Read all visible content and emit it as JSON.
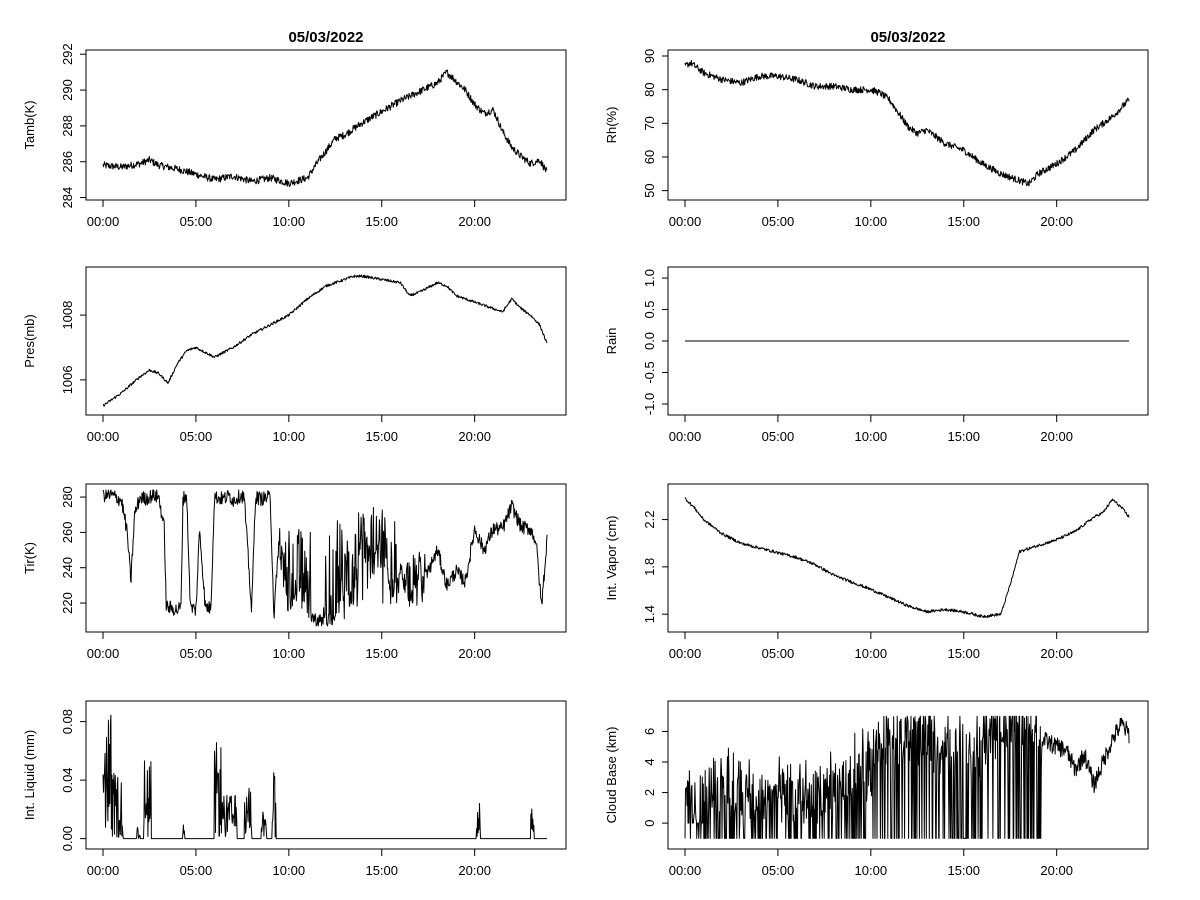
{
  "colors": {
    "line": "#000000",
    "background": "#ffffff"
  },
  "x_tick_labels": [
    "00:00",
    "05:00",
    "10:00",
    "15:00",
    "20:00"
  ],
  "chart_data": [
    {
      "type": "line",
      "panel": "Tamb",
      "title": "05/03/2022",
      "ylabel": "Tamb(K)",
      "xlim": [
        0,
        24
      ],
      "ylim": [
        284.2,
        291.9
      ],
      "yticks": [
        284,
        286,
        288,
        290,
        292
      ],
      "ytick_labels": [
        "284",
        "286",
        "288",
        "290",
        "292"
      ],
      "x": [
        0,
        1,
        2,
        2.5,
        3,
        4,
        5,
        6,
        7,
        8,
        9,
        10,
        11,
        11.5,
        12,
        12.5,
        13,
        14,
        15,
        16,
        17,
        18,
        18.5,
        19,
        19.5,
        20,
        20.5,
        21,
        21.5,
        22,
        22.5,
        23,
        23.5,
        23.9
      ],
      "y": [
        285.8,
        285.7,
        285.9,
        286.1,
        285.8,
        285.6,
        285.3,
        285.0,
        285.2,
        284.9,
        285.1,
        284.8,
        285.1,
        285.9,
        286.6,
        287.3,
        287.5,
        288.2,
        288.8,
        289.4,
        289.9,
        290.4,
        291.0,
        290.5,
        290.0,
        289.2,
        288.7,
        288.9,
        287.7,
        286.8,
        286.3,
        285.9,
        286.1,
        285.4
      ],
      "noise": 0.2
    },
    {
      "type": "line",
      "panel": "Rh",
      "title": "05/03/2022",
      "ylabel": "Rh(%)",
      "xlim": [
        0,
        24
      ],
      "ylim": [
        49,
        90
      ],
      "yticks": [
        50,
        60,
        70,
        80,
        90
      ],
      "ytick_labels": [
        "50",
        "60",
        "70",
        "80",
        "90"
      ],
      "x": [
        0,
        0.3,
        1,
        2,
        3,
        4,
        5,
        6,
        7,
        8,
        9,
        10,
        10.5,
        11,
        11.5,
        12,
        12.5,
        13,
        14,
        15,
        16,
        17,
        18,
        18.5,
        19,
        20,
        21,
        22,
        23,
        23.9
      ],
      "y": [
        87,
        88,
        85,
        83,
        82,
        84,
        84,
        83,
        81,
        81,
        80,
        80,
        79,
        77,
        73,
        69,
        67,
        68,
        64,
        62,
        58,
        55,
        53,
        52,
        55,
        58,
        62,
        68,
        72,
        77
      ],
      "noise": 1.0
    },
    {
      "type": "line",
      "panel": "Pres",
      "ylabel": "Pres(mb)",
      "xlim": [
        0,
        24
      ],
      "ylim": [
        1005.1,
        1009.3
      ],
      "yticks": [
        1006,
        1008
      ],
      "ytick_labels": [
        "1006",
        "1008"
      ],
      "x": [
        0,
        1,
        2,
        2.5,
        3,
        3.5,
        4,
        4.5,
        5,
        6,
        7,
        8,
        9,
        10,
        11,
        12,
        12.5,
        13,
        13.5,
        14,
        15,
        16,
        16.5,
        17,
        18,
        18.5,
        19,
        20,
        21,
        21.5,
        22,
        22.5,
        23,
        23.5,
        23.9
      ],
      "y": [
        1005.2,
        1005.6,
        1006.1,
        1006.3,
        1006.2,
        1005.9,
        1006.5,
        1006.9,
        1007.0,
        1006.7,
        1007.0,
        1007.4,
        1007.7,
        1008.0,
        1008.5,
        1008.9,
        1009.0,
        1009.1,
        1009.2,
        1009.2,
        1009.1,
        1009.0,
        1008.6,
        1008.7,
        1009.0,
        1008.9,
        1008.6,
        1008.4,
        1008.2,
        1008.1,
        1008.5,
        1008.2,
        1008.0,
        1007.7,
        1007.1
      ],
      "noise": 0.04
    },
    {
      "type": "line",
      "panel": "Rain",
      "ylabel": "Rain",
      "xlim": [
        0,
        24
      ],
      "ylim": [
        -1.08,
        1.08
      ],
      "yticks": [
        -1.0,
        -0.5,
        0.0,
        0.5,
        1.0
      ],
      "ytick_labels": [
        "-1.0",
        "-0.5",
        "0.0",
        "0.5",
        "1.0"
      ],
      "x": [
        0,
        23.9
      ],
      "y": [
        0,
        0
      ],
      "noise": 0
    },
    {
      "type": "line",
      "panel": "Tir",
      "ylabel": "Tir(K)",
      "xlim": [
        0,
        24
      ],
      "ylim": [
        207,
        284
      ],
      "yticks": [
        220,
        240,
        260,
        280
      ],
      "ytick_labels": [
        "220",
        "240",
        "260",
        "280"
      ],
      "x": [
        0,
        0.5,
        1.0,
        1.3,
        1.5,
        1.7,
        2.0,
        2.3,
        2.7,
        3.0,
        3.3,
        3.4,
        4.0,
        4.2,
        4.3,
        4.5,
        4.7,
        5.0,
        5.2,
        5.5,
        5.8,
        6.0,
        6.5,
        6.8,
        7.0,
        7.4,
        7.6,
        8.0,
        8.2,
        8.5,
        9.0,
        9.2,
        9.5,
        10.0,
        10.5,
        11.0,
        11.5,
        12.0,
        12.5,
        13.0,
        13.5,
        14.0,
        14.5,
        15.0,
        15.5,
        16.0,
        16.5,
        17.0,
        17.5,
        18.0,
        18.5,
        19.0,
        19.5,
        20.0,
        20.5,
        21.0,
        21.5,
        22.0,
        22.5,
        23.0,
        23.3,
        23.6,
        23.9
      ],
      "y": [
        281,
        281,
        278,
        260,
        232,
        270,
        280,
        279,
        281,
        280,
        262,
        218,
        216,
        218,
        279,
        281,
        218,
        216,
        262,
        218,
        217,
        280,
        279,
        281,
        278,
        281,
        280,
        215,
        280,
        279,
        280,
        212,
        262,
        212,
        228,
        215,
        210,
        210,
        212,
        228,
        222,
        270,
        240,
        265,
        222,
        238,
        220,
        238,
        238,
        250,
        230,
        238,
        232,
        262,
        250,
        262,
        262,
        275,
        263,
        262,
        255,
        218,
        257
      ],
      "noise": 4,
      "spikes": [
        [
          9.3,
          11.2,
          215,
          262
        ],
        [
          11.8,
          13.0,
          210,
          268
        ],
        [
          13.0,
          15.8,
          218,
          275
        ],
        [
          15.8,
          17.5,
          218,
          250
        ]
      ]
    },
    {
      "type": "line",
      "panel": "Vapor",
      "ylabel": "Int. Vapor (cm)",
      "xlim": [
        0,
        24
      ],
      "ylim": [
        1.3,
        2.45
      ],
      "yticks": [
        1.4,
        1.8,
        2.2
      ],
      "ytick_labels": [
        "1.4",
        "1.8",
        "2.2"
      ],
      "x": [
        0,
        0.5,
        1,
        2,
        3,
        4,
        5,
        6,
        7,
        8,
        9,
        10,
        11,
        12,
        13,
        14,
        15,
        16,
        17,
        17.5,
        18,
        19,
        20,
        21,
        22,
        22.5,
        23,
        23.5,
        23.9
      ],
      "y": [
        2.38,
        2.3,
        2.2,
        2.08,
        2.0,
        1.96,
        1.92,
        1.88,
        1.82,
        1.73,
        1.67,
        1.61,
        1.54,
        1.47,
        1.42,
        1.44,
        1.42,
        1.38,
        1.4,
        1.65,
        1.93,
        1.98,
        2.03,
        2.1,
        2.22,
        2.26,
        2.37,
        2.3,
        2.22
      ],
      "noise": 0.012
    },
    {
      "type": "line",
      "panel": "Liquid",
      "ylabel": "Int. Liquid (mm)",
      "xlim": [
        0,
        24
      ],
      "ylim": [
        -0.003,
        0.09
      ],
      "yticks": [
        0.0,
        0.04,
        0.08
      ],
      "ytick_labels": [
        "0.00",
        "0.04",
        "0.08"
      ],
      "x": [
        0,
        23.9
      ],
      "y": [
        0,
        0
      ],
      "noise": 0,
      "bursts": [
        [
          0.0,
          0.45,
          0.088
        ],
        [
          0.45,
          1.0,
          0.045
        ],
        [
          1.0,
          1.1,
          0.015
        ],
        [
          1.8,
          2.0,
          0.01
        ],
        [
          2.2,
          2.6,
          0.056
        ],
        [
          4.3,
          4.4,
          0.01
        ],
        [
          6.0,
          6.4,
          0.066
        ],
        [
          6.4,
          7.2,
          0.03
        ],
        [
          7.6,
          8.0,
          0.036
        ],
        [
          8.5,
          8.8,
          0.02
        ],
        [
          9.1,
          9.3,
          0.046
        ],
        [
          20.1,
          20.3,
          0.026
        ],
        [
          23.0,
          23.2,
          0.024
        ]
      ]
    },
    {
      "type": "line",
      "panel": "CloudBase",
      "ylabel": "Cloud Base (km)",
      "xlim": [
        0,
        24
      ],
      "ylim": [
        -1.3,
        7.6
      ],
      "yticks": [
        0,
        2,
        4,
        6
      ],
      "ytick_labels": [
        "0",
        "2",
        "4",
        "6"
      ],
      "x": [
        0,
        1,
        2,
        3,
        4,
        5,
        6,
        7,
        8,
        9,
        10,
        11,
        12,
        13,
        14,
        15,
        16,
        17,
        18,
        19,
        19.2,
        20,
        20.5,
        21,
        21.5,
        22,
        22.5,
        23,
        23.5,
        23.9
      ],
      "y": [
        1,
        1.5,
        3,
        2,
        1.5,
        2,
        1.8,
        1.5,
        2.5,
        3.5,
        4,
        5.5,
        6,
        6,
        5,
        5,
        5.5,
        6.5,
        6.8,
        6,
        5.5,
        5.0,
        4.8,
        3.5,
        4.5,
        2.5,
        4.0,
        5.5,
        6.5,
        5.8
      ],
      "noise": 0.6,
      "dropouts": [
        [
          0,
          19.2
        ]
      ]
    }
  ]
}
